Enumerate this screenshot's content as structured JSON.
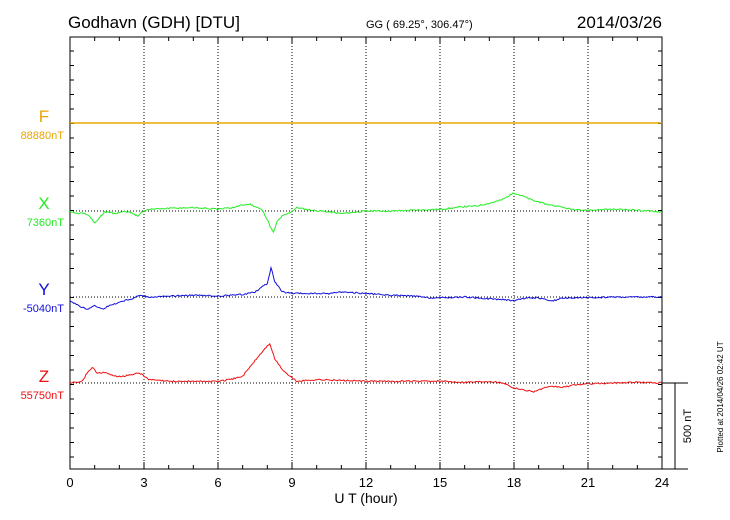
{
  "header": {
    "station": "Godhavn (GDH)  [DTU]",
    "coords": "GG ( 69.25°, 306.47°)",
    "date": "2014/03/26"
  },
  "plotted_note": "Plotted at 2014/04/26 02:42 UT",
  "scale_label": "500 nT",
  "colors": {
    "F": "#e8a500",
    "X": "#22ee22",
    "Y": "#1010dd",
    "Z": "#ee1010"
  },
  "chart_data": {
    "type": "line",
    "xlabel": "U T (hour)",
    "xlim": [
      0,
      24
    ],
    "xticks": [
      0,
      3,
      6,
      9,
      12,
      15,
      18,
      21,
      24
    ],
    "scale_bar_nT": 500,
    "grid": true,
    "series": [
      {
        "name": "F",
        "baseline_label": "88880nT",
        "baseline_nT": 88880,
        "points": [
          [
            0,
            0
          ],
          [
            24,
            0
          ]
        ]
      },
      {
        "name": "X",
        "baseline_label": "7360nT",
        "baseline_nT": 7360,
        "points": [
          [
            0,
            0
          ],
          [
            0.3,
            -12
          ],
          [
            0.6,
            -15
          ],
          [
            0.8,
            -30
          ],
          [
            1.0,
            -70
          ],
          [
            1.2,
            -40
          ],
          [
            1.4,
            -5
          ],
          [
            1.8,
            -15
          ],
          [
            2.2,
            -5
          ],
          [
            2.5,
            -10
          ],
          [
            2.75,
            -30
          ],
          [
            2.9,
            -5
          ],
          [
            3.2,
            10
          ],
          [
            4,
            15
          ],
          [
            5,
            20
          ],
          [
            6,
            10
          ],
          [
            6.6,
            20
          ],
          [
            7.0,
            35
          ],
          [
            7.3,
            40
          ],
          [
            7.6,
            20
          ],
          [
            7.8,
            5
          ],
          [
            8.0,
            -50
          ],
          [
            8.15,
            -100
          ],
          [
            8.25,
            -125
          ],
          [
            8.4,
            -60
          ],
          [
            8.6,
            -30
          ],
          [
            8.9,
            -10
          ],
          [
            9.2,
            20
          ],
          [
            9.8,
            5
          ],
          [
            10.5,
            -5
          ],
          [
            11,
            -15
          ],
          [
            12,
            0
          ],
          [
            13,
            0
          ],
          [
            14,
            5
          ],
          [
            15,
            10
          ],
          [
            16,
            25
          ],
          [
            16.5,
            30
          ],
          [
            17,
            45
          ],
          [
            17.5,
            65
          ],
          [
            18,
            105
          ],
          [
            18.3,
            90
          ],
          [
            18.8,
            60
          ],
          [
            19.3,
            40
          ],
          [
            20,
            20
          ],
          [
            20.5,
            5
          ],
          [
            21,
            5
          ],
          [
            22,
            10
          ],
          [
            23,
            5
          ],
          [
            24,
            -5
          ]
        ]
      },
      {
        "name": "Y",
        "baseline_label": "-5040nT",
        "baseline_nT": -5040,
        "points": [
          [
            0,
            -20
          ],
          [
            0.4,
            -55
          ],
          [
            0.7,
            -70
          ],
          [
            1.0,
            -50
          ],
          [
            1.3,
            -70
          ],
          [
            1.6,
            -50
          ],
          [
            1.9,
            -35
          ],
          [
            2.2,
            -20
          ],
          [
            2.5,
            -10
          ],
          [
            2.8,
            10
          ],
          [
            3.2,
            0
          ],
          [
            4,
            5
          ],
          [
            5,
            10
          ],
          [
            6,
            5
          ],
          [
            7,
            15
          ],
          [
            7.5,
            30
          ],
          [
            7.8,
            60
          ],
          [
            8.0,
            80
          ],
          [
            8.15,
            170
          ],
          [
            8.3,
            90
          ],
          [
            8.6,
            30
          ],
          [
            9.0,
            20
          ],
          [
            9.5,
            20
          ],
          [
            10.5,
            20
          ],
          [
            11,
            30
          ],
          [
            12,
            20
          ],
          [
            13,
            10
          ],
          [
            14,
            5
          ],
          [
            14.5,
            -5
          ],
          [
            15,
            -5
          ],
          [
            16,
            0
          ],
          [
            17,
            -10
          ],
          [
            17.5,
            -15
          ],
          [
            18,
            -20
          ],
          [
            18.5,
            -5
          ],
          [
            19,
            -5
          ],
          [
            19.5,
            -25
          ],
          [
            20,
            -5
          ],
          [
            21,
            -5
          ],
          [
            22,
            0
          ],
          [
            23,
            0
          ],
          [
            24,
            0
          ]
        ]
      },
      {
        "name": "Z",
        "baseline_label": "55750nT",
        "baseline_nT": 55750,
        "points": [
          [
            0,
            0
          ],
          [
            0.5,
            10
          ],
          [
            0.7,
            60
          ],
          [
            0.9,
            90
          ],
          [
            1.1,
            60
          ],
          [
            1.4,
            60
          ],
          [
            1.8,
            40
          ],
          [
            2.2,
            40
          ],
          [
            2.5,
            50
          ],
          [
            2.8,
            60
          ],
          [
            3.2,
            20
          ],
          [
            4,
            10
          ],
          [
            5,
            10
          ],
          [
            6,
            10
          ],
          [
            6.5,
            20
          ],
          [
            7,
            40
          ],
          [
            7.5,
            130
          ],
          [
            7.9,
            200
          ],
          [
            8.1,
            230
          ],
          [
            8.3,
            140
          ],
          [
            8.6,
            80
          ],
          [
            8.9,
            40
          ],
          [
            9.2,
            10
          ],
          [
            10,
            20
          ],
          [
            11,
            15
          ],
          [
            12,
            10
          ],
          [
            13,
            10
          ],
          [
            14,
            10
          ],
          [
            15,
            10
          ],
          [
            16,
            5
          ],
          [
            17,
            10
          ],
          [
            17.6,
            0
          ],
          [
            18,
            -30
          ],
          [
            18.4,
            -40
          ],
          [
            18.8,
            -50
          ],
          [
            19.2,
            -30
          ],
          [
            19.6,
            -20
          ],
          [
            20,
            -25
          ],
          [
            20.5,
            -10
          ],
          [
            21,
            -5
          ],
          [
            22,
            0
          ],
          [
            23,
            5
          ],
          [
            24,
            0
          ]
        ]
      }
    ]
  }
}
